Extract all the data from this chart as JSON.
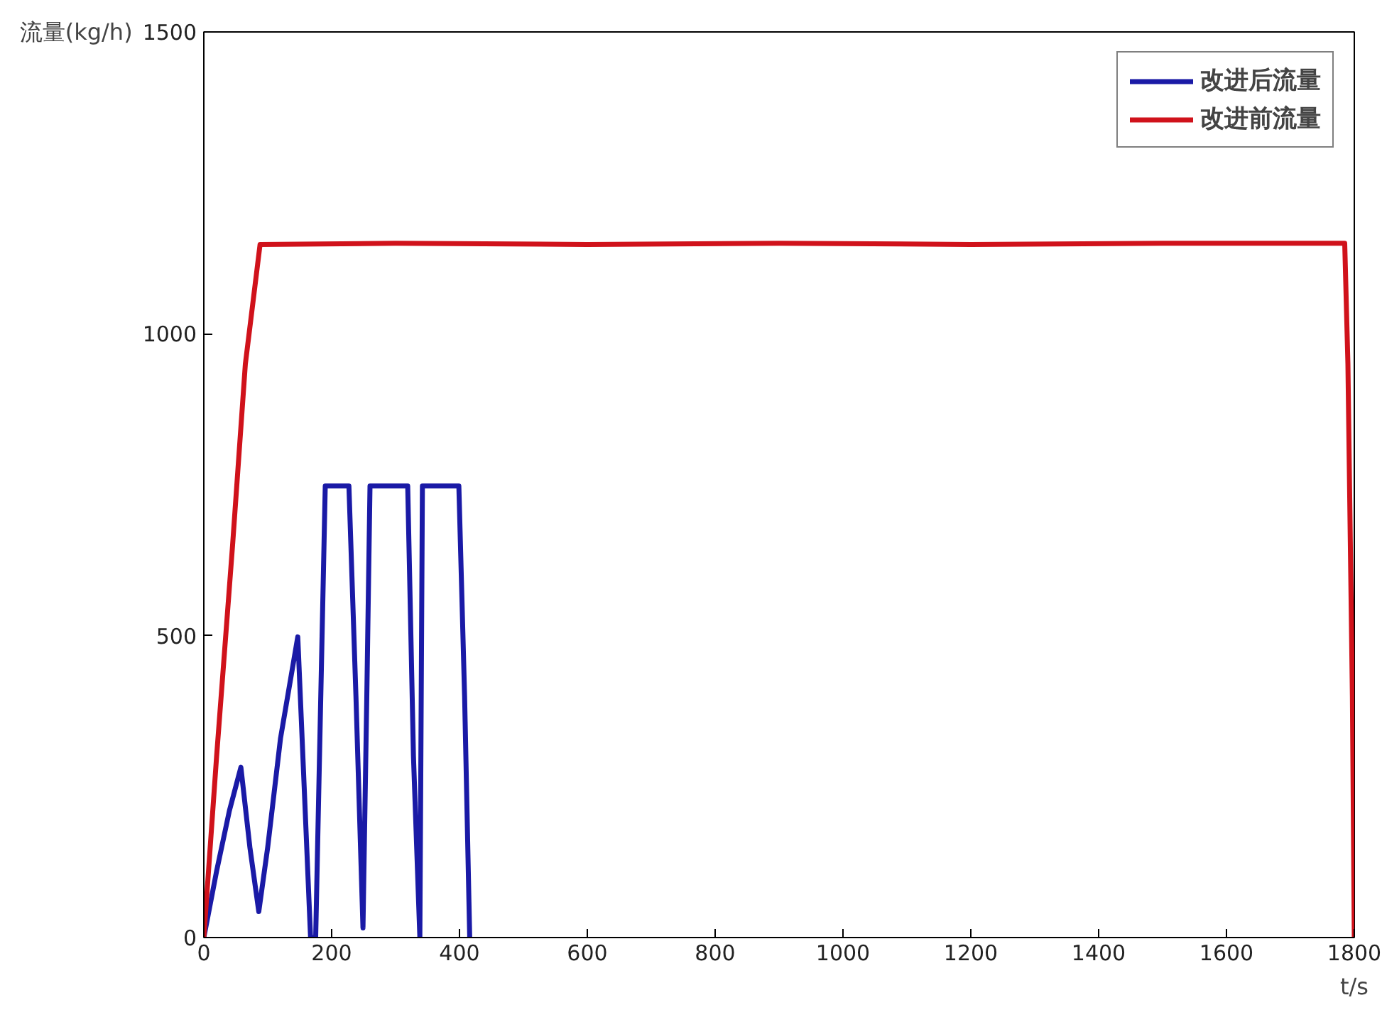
{
  "chart_data": {
    "type": "line",
    "xlabel": "t/s",
    "ylabel": "流量(kg/h)",
    "xlim": [
      0,
      1800
    ],
    "ylim": [
      0,
      1500
    ],
    "xticks": [
      0,
      200,
      400,
      600,
      800,
      1000,
      1200,
      1400,
      1600,
      1800
    ],
    "yticks": [
      0,
      500,
      1000,
      1500
    ],
    "grid": false,
    "legend": "top right",
    "line_style": "solid",
    "marker": "none",
    "series": [
      {
        "name": "改进后流量",
        "color": "#1a1aa6",
        "x": [
          0,
          20,
          40,
          58,
          72,
          86,
          100,
          120,
          147,
          157,
          167,
          175,
          183,
          190,
          227,
          238,
          249,
          255,
          260,
          319,
          328,
          338,
          342,
          399,
          408,
          416
        ],
        "values": [
          0,
          110,
          210,
          282,
          150,
          43,
          150,
          330,
          498,
          250,
          0,
          0,
          400,
          748,
          748,
          400,
          16,
          400,
          748,
          748,
          300,
          0,
          748,
          748,
          400,
          0
        ]
      },
      {
        "name": "改进前流量",
        "color": "#d0121b",
        "x": [
          0,
          20,
          45,
          65,
          88,
          300,
          600,
          900,
          1200,
          1500,
          1785,
          1790,
          1797,
          1800
        ],
        "values": [
          0,
          300,
          650,
          950,
          1148,
          1150,
          1148,
          1150,
          1148,
          1150,
          1150,
          950,
          400,
          0
        ]
      }
    ]
  }
}
